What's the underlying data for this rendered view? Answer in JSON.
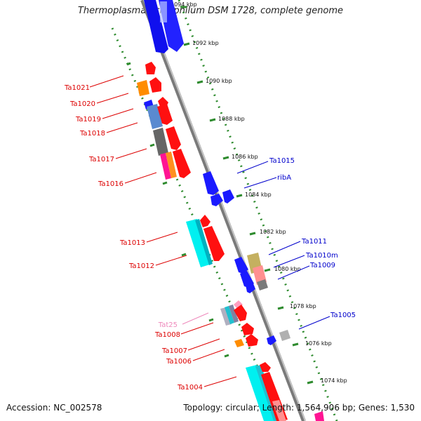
{
  "title": "Thermoplasma acidophilum DSM 1728, complete genome",
  "footer": {
    "accession": "Accession: NC_002578",
    "summary": "Topology: circular; Length: 1,564,906 bp; Genes: 1,530"
  },
  "colors": {
    "backbone": "#8c8c8c",
    "scale_dots": "#2e8b2e",
    "left_labels": "#dd0000",
    "right_labels": "#0000cc",
    "trna_label": "#ee88bb"
  },
  "kbp_ticks": [
    {
      "label": "1094 kbp"
    },
    {
      "label": "1092 kbp"
    },
    {
      "label": "1090 kbp"
    },
    {
      "label": "1088 kbp"
    },
    {
      "label": "1086 kbp"
    },
    {
      "label": "1084 kbp"
    },
    {
      "label": "1082 kbp"
    },
    {
      "label": "1080 kbp"
    },
    {
      "label": "1078 kbp"
    },
    {
      "label": "1076 kbp"
    },
    {
      "label": "1074 kbp"
    }
  ],
  "gene_labels_left": [
    {
      "text": "Ta1021"
    },
    {
      "text": "Ta1020"
    },
    {
      "text": "Ta1019"
    },
    {
      "text": "Ta1018"
    },
    {
      "text": "Ta1017"
    },
    {
      "text": "Ta1016"
    },
    {
      "text": "Ta1013"
    },
    {
      "text": "Ta1012"
    },
    {
      "text": "Tat25"
    },
    {
      "text": "Ta1008"
    },
    {
      "text": "Ta1007"
    },
    {
      "text": "Ta1006"
    },
    {
      "text": "Ta1004"
    }
  ],
  "gene_labels_right": [
    {
      "text": "Ta1015"
    },
    {
      "text": "ribA"
    },
    {
      "text": "Ta1011"
    },
    {
      "text": "Ta1010m"
    },
    {
      "text": "Ta1009"
    },
    {
      "text": "Ta1005"
    }
  ]
}
